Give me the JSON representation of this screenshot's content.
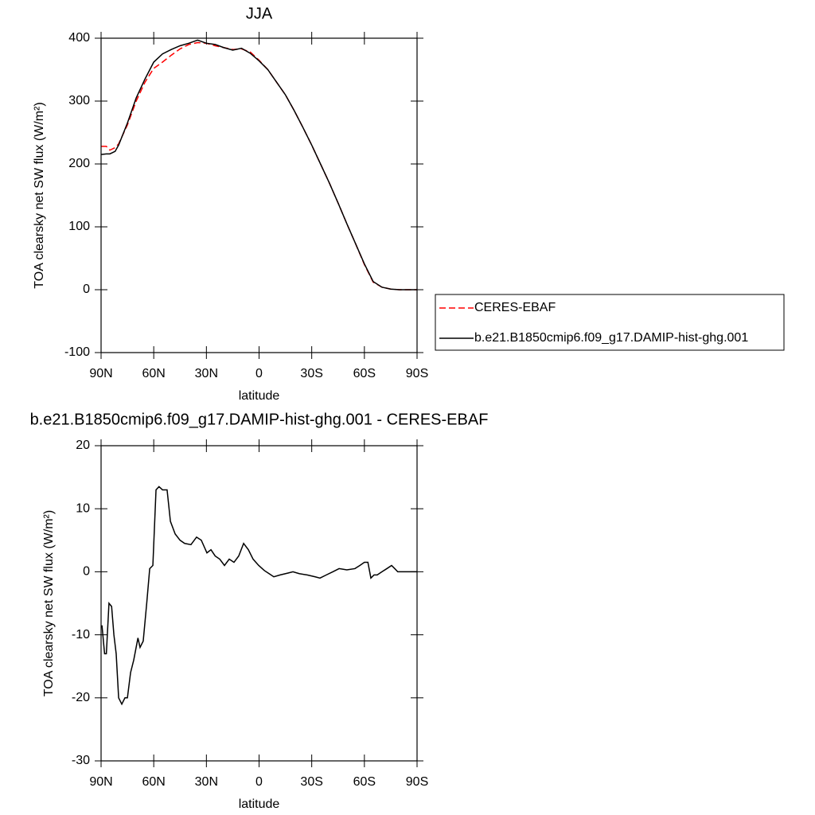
{
  "chart_data": [
    {
      "type": "line",
      "title": "JJA",
      "xlabel": "latitude",
      "ylabel": "TOA clearsky net SW flux (W/m²)",
      "x": [
        90,
        87,
        85,
        82,
        80,
        75,
        70,
        65,
        60,
        55,
        50,
        45,
        40,
        35,
        30,
        25,
        20,
        15,
        10,
        5,
        0,
        -5,
        -10,
        -15,
        -20,
        -25,
        -30,
        -35,
        -40,
        -45,
        -50,
        -55,
        -60,
        -65,
        -70,
        -75,
        -80,
        -85,
        -90
      ],
      "series": [
        {
          "name": "CERES-EBAF",
          "color": "#ff0000",
          "dash": true,
          "values": [
            228,
            228,
            222,
            226,
            232,
            262,
            300,
            330,
            352,
            362,
            373,
            383,
            390,
            393,
            392,
            388,
            385,
            382,
            383,
            378,
            365,
            350,
            330,
            310,
            285,
            258,
            230,
            200,
            170,
            138,
            105,
            73,
            40,
            12,
            4,
            1,
            0,
            0,
            0
          ]
        },
        {
          "name": "b.e21.B1850cmip6.f09_g17.DAMIP-hist-ghg.001",
          "color": "#000000",
          "dash": false,
          "values": [
            215,
            216,
            216,
            220,
            230,
            265,
            305,
            335,
            362,
            375,
            382,
            388,
            392,
            397,
            392,
            390,
            385,
            381,
            384,
            376,
            364,
            350,
            330,
            310,
            285,
            258,
            230,
            200,
            170,
            138,
            105,
            73,
            41,
            13,
            4,
            1,
            0,
            0,
            0
          ]
        }
      ],
      "xlim": [
        90,
        -90
      ],
      "xticks": [
        {
          "value": 90,
          "label": "90N"
        },
        {
          "value": 60,
          "label": "60N"
        },
        {
          "value": 30,
          "label": "30N"
        },
        0,
        {
          "value": -30,
          "label": "30S"
        },
        {
          "value": -60,
          "label": "60S"
        },
        {
          "value": -90,
          "label": "90S"
        }
      ],
      "ylim": [
        -100,
        400
      ],
      "yticks": [
        -100,
        0,
        100,
        200,
        300,
        400
      ],
      "legend": "right"
    },
    {
      "type": "line",
      "title": "b.e21.B1850cmip6.f09_g17.DAMIP-hist-ghg.001 - CERES-EBAF",
      "xlabel": "latitude",
      "ylabel": "TOA clearsky net SW flux (W/m²)",
      "x": [
        89.5,
        88,
        87,
        85.5,
        84,
        82.7,
        81.4,
        80,
        78.2,
        76.4,
        75,
        73.2,
        71.4,
        69,
        67.8,
        66,
        64,
        62.3,
        60.5,
        58.7,
        57,
        55,
        52.4,
        50.5,
        47.8,
        45,
        42.4,
        38.8,
        35.6,
        32.9,
        29.7,
        27.4,
        25,
        22.4,
        19.7,
        17,
        14.3,
        11.6,
        8.8,
        6.1,
        3.4,
        0.2,
        -3,
        -5.7,
        -8.4,
        -12,
        -16.5,
        -19.3,
        -22.9,
        -27.4,
        -32,
        -34.7,
        -38.3,
        -42,
        -45.6,
        -50,
        -54.6,
        -57.4,
        -60,
        -62,
        -63.7,
        -65.5,
        -67.3,
        -70,
        -72.8,
        -75.5,
        -77.3,
        -79,
        -90
      ],
      "series": [
        {
          "color": "#000000",
          "dash": false,
          "values": [
            -8.5,
            -13,
            -13,
            -5,
            -5.5,
            -10,
            -13,
            -20,
            -21,
            -20,
            -20,
            -16,
            -14,
            -10.5,
            -12,
            -11,
            -5,
            0.5,
            1,
            13,
            13.5,
            13,
            13,
            8,
            6,
            5,
            4.5,
            4.3,
            5.5,
            5,
            3,
            3.5,
            2.5,
            2,
            1,
            2,
            1.5,
            2.5,
            4.5,
            3.5,
            2,
            1,
            0.2,
            -0.3,
            -0.8,
            -0.5,
            -0.2,
            0,
            -0.3,
            -0.5,
            -0.8,
            -1,
            -0.5,
            0,
            0.5,
            0.3,
            0.5,
            1,
            1.5,
            1.5,
            -1,
            -0.5,
            -0.5,
            0,
            0.5,
            1,
            0.5,
            0,
            0
          ]
        }
      ],
      "xlim": [
        90,
        -90
      ],
      "xticks": [
        {
          "value": 90,
          "label": "90N"
        },
        {
          "value": 60,
          "label": "60N"
        },
        {
          "value": 30,
          "label": "30N"
        },
        0,
        {
          "value": -30,
          "label": "30S"
        },
        {
          "value": -60,
          "label": "60S"
        },
        {
          "value": -90,
          "label": "90S"
        }
      ],
      "ylim": [
        -30,
        20
      ],
      "yticks": [
        -30,
        -20,
        -10,
        0,
        10,
        20
      ]
    }
  ]
}
